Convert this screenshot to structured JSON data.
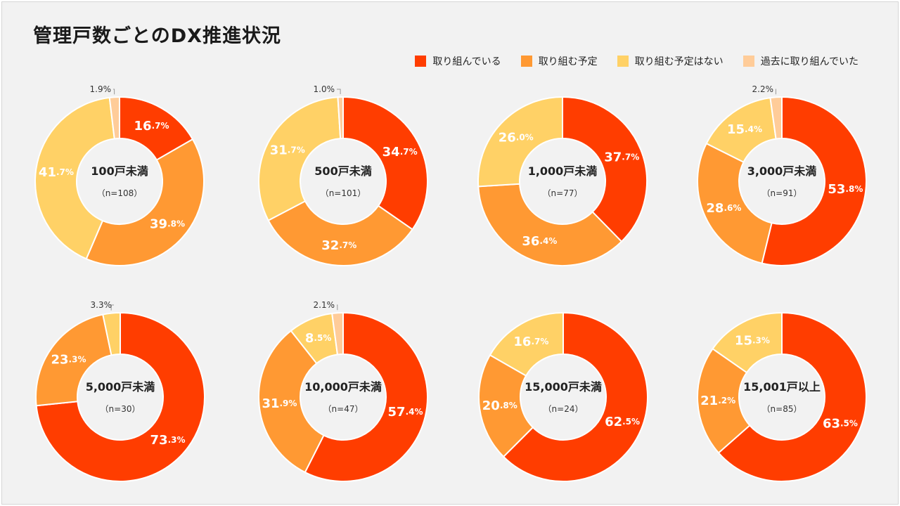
{
  "page_title": "管理戸数ごとのDX推進状況",
  "legend": [
    {
      "label": "取り組んでいる",
      "color": "#ff3d00"
    },
    {
      "label": "取り組む予定",
      "color": "#ff9933"
    },
    {
      "label": "取り組む予定はない",
      "color": "#ffd166"
    },
    {
      "label": "過去に取り組んでいた",
      "color": "#ffcc99"
    }
  ],
  "chart_data": [
    {
      "type": "pie",
      "title": "100戸未満",
      "n_label": "（n=108）",
      "series_names": [
        "取り組んでいる",
        "取り組む予定",
        "取り組む予定はない",
        "過去に取り組んでいた"
      ],
      "values": [
        16.7,
        39.8,
        41.7,
        1.9
      ],
      "labels": [
        {
          "main": "16",
          "dec": ".7%"
        },
        {
          "main": "39",
          "dec": ".8%"
        },
        {
          "main": "41",
          "dec": ".7%"
        },
        {
          "text": "1.9%"
        }
      ]
    },
    {
      "type": "pie",
      "title": "500戸未満",
      "n_label": "（n=101）",
      "series_names": [
        "取り組んでいる",
        "取り組む予定",
        "取り組む予定はない",
        "過去に取り組んでいた"
      ],
      "values": [
        34.7,
        32.7,
        31.7,
        1.0
      ],
      "labels": [
        {
          "main": "34",
          "dec": ".7%"
        },
        {
          "main": "32",
          "dec": ".7%"
        },
        {
          "main": "31",
          "dec": ".7%"
        },
        {
          "text": "1.0%"
        }
      ]
    },
    {
      "type": "pie",
      "title": "1,000戸未満",
      "n_label": "（n=77）",
      "series_names": [
        "取り組んでいる",
        "取り組む予定",
        "取り組む予定はない",
        "過去に取り組んでいた"
      ],
      "values": [
        37.7,
        36.4,
        26.0,
        0
      ],
      "labels": [
        {
          "main": "37",
          "dec": ".7%"
        },
        {
          "main": "36",
          "dec": ".4%"
        },
        {
          "main": "26",
          "dec": ".0%"
        },
        null
      ]
    },
    {
      "type": "pie",
      "title": "3,000戸未満",
      "n_label": "（n=91）",
      "series_names": [
        "取り組んでいる",
        "取り組む予定",
        "取り組む予定はない",
        "過去に取り組んでいた"
      ],
      "values": [
        53.8,
        28.6,
        15.4,
        2.2
      ],
      "labels": [
        {
          "main": "53",
          "dec": ".8%"
        },
        {
          "main": "28",
          "dec": ".6%"
        },
        {
          "main": "15",
          "dec": ".4%"
        },
        {
          "text": "2.2%"
        }
      ]
    },
    {
      "type": "pie",
      "title": "5,000戸未満",
      "n_label": "（n=30）",
      "series_names": [
        "取り組んでいる",
        "取り組む予定",
        "取り組む予定はない",
        "過去に取り組んでいた"
      ],
      "values": [
        73.3,
        23.3,
        3.3,
        0
      ],
      "labels": [
        {
          "main": "73",
          "dec": ".3%"
        },
        {
          "main": "23",
          "dec": ".3%"
        },
        {
          "text": "3.3%"
        },
        null
      ]
    },
    {
      "type": "pie",
      "title": "10,000戸未満",
      "n_label": "（n=47）",
      "series_names": [
        "取り組んでいる",
        "取り組む予定",
        "取り組む予定はない",
        "過去に取り組んでいた"
      ],
      "values": [
        57.4,
        31.9,
        8.5,
        2.1
      ],
      "labels": [
        {
          "main": "57",
          "dec": ".4%"
        },
        {
          "main": "31",
          "dec": ".9%"
        },
        {
          "main": "8",
          "dec": ".5%"
        },
        {
          "text": "2.1%"
        }
      ]
    },
    {
      "type": "pie",
      "title": "15,000戸未満",
      "n_label": "（n=24）",
      "series_names": [
        "取り組んでいる",
        "取り組む予定",
        "取り組む予定はない",
        "過去に取り組んでいた"
      ],
      "values": [
        62.5,
        20.8,
        16.7,
        0
      ],
      "labels": [
        {
          "main": "62",
          "dec": ".5%"
        },
        {
          "main": "20",
          "dec": ".8%"
        },
        {
          "main": "16",
          "dec": ".7%"
        },
        null
      ]
    },
    {
      "type": "pie",
      "title": "15,001戸以上",
      "n_label": "（n=85）",
      "series_names": [
        "取り組んでいる",
        "取り組む予定",
        "取り組む予定はない",
        "過去に取り組んでいた"
      ],
      "values": [
        63.5,
        21.2,
        15.3,
        0
      ],
      "labels": [
        {
          "main": "63",
          "dec": ".5%"
        },
        {
          "main": "21",
          "dec": ".2%"
        },
        {
          "main": "15",
          "dec": ".3%"
        },
        null
      ]
    }
  ]
}
